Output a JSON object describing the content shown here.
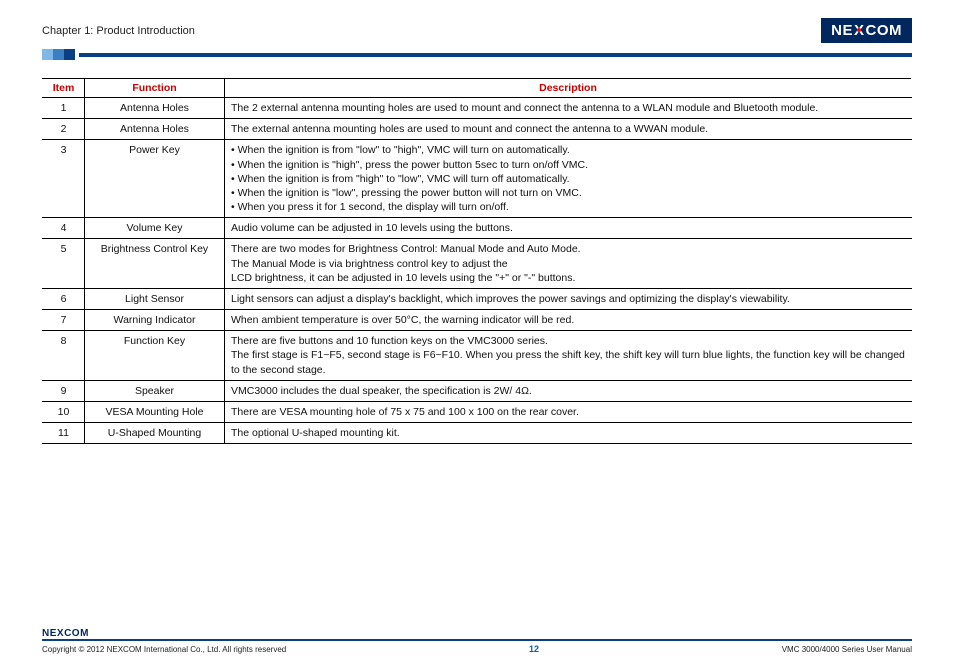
{
  "header": {
    "chapter": "Chapter 1: Product Introduction",
    "logo_pre": "NE",
    "logo_x": "X",
    "logo_post": "COM"
  },
  "table": {
    "columns": {
      "item": "Item",
      "func": "Function",
      "desc": "Description"
    },
    "rows": [
      {
        "item": "1",
        "func": "Antenna Holes",
        "desc": "The 2 external antenna mounting holes are used to mount and connect the antenna to a WLAN module and Bluetooth module."
      },
      {
        "item": "2",
        "func": "Antenna Holes",
        "desc": "The external antenna mounting holes are used to mount and connect the antenna to a WWAN module."
      },
      {
        "item": "3",
        "func": "Power Key",
        "desc": "• When the ignition is from \"low\" to \"high\", VMC will turn on automatically.\n• When the ignition is \"high\", press the power button 5sec to turn on/off VMC.\n• When the ignition is from \"high\" to \"low\", VMC will turn off automatically.\n• When the ignition is \"low\", pressing the power button will not turn on VMC.\n• When you press it for 1 second, the display will turn on/off."
      },
      {
        "item": "4",
        "func": "Volume Key",
        "desc": "Audio volume can be adjusted in 10 levels using the buttons."
      },
      {
        "item": "5",
        "func": "Brightness Control Key",
        "desc": "There are two modes for Brightness Control: Manual Mode and Auto Mode.\nThe Manual Mode is via brightness control key to adjust the\nLCD brightness, it can be adjusted in 10 levels using the \"+\" or \"-\" buttons."
      },
      {
        "item": "6",
        "func": "Light Sensor",
        "desc": "Light sensors can adjust a display's backlight, which improves the power savings and optimizing the display's viewability."
      },
      {
        "item": "7",
        "func": "Warning Indicator",
        "desc": "When ambient temperature is over 50°C, the warning indicator will be red."
      },
      {
        "item": "8",
        "func": "Function Key",
        "desc": "There are five buttons and 10 function keys on the VMC3000 series.\nThe first stage is F1~F5, second stage is F6~F10. When you press the shift key, the shift key will turn blue lights, the function key will be changed to the second stage."
      },
      {
        "item": "9",
        "func": "Speaker",
        "desc": "VMC3000 includes the dual speaker, the specification is 2W/ 4Ω."
      },
      {
        "item": "10",
        "func": "VESA Mounting Hole",
        "desc": "There are VESA mounting hole of 75 x 75 and 100 x 100 on the rear cover."
      },
      {
        "item": "11",
        "func": "U-Shaped Mounting",
        "desc": "The optional U-shaped mounting kit."
      }
    ]
  },
  "footer": {
    "logo_pre": "NE",
    "logo_x": "X",
    "logo_post": "COM",
    "copyright": "Copyright © 2012 NEXCOM International Co., Ltd. All rights reserved",
    "page": "12",
    "doc": "VMC 3000/4000 Series User Manual"
  }
}
